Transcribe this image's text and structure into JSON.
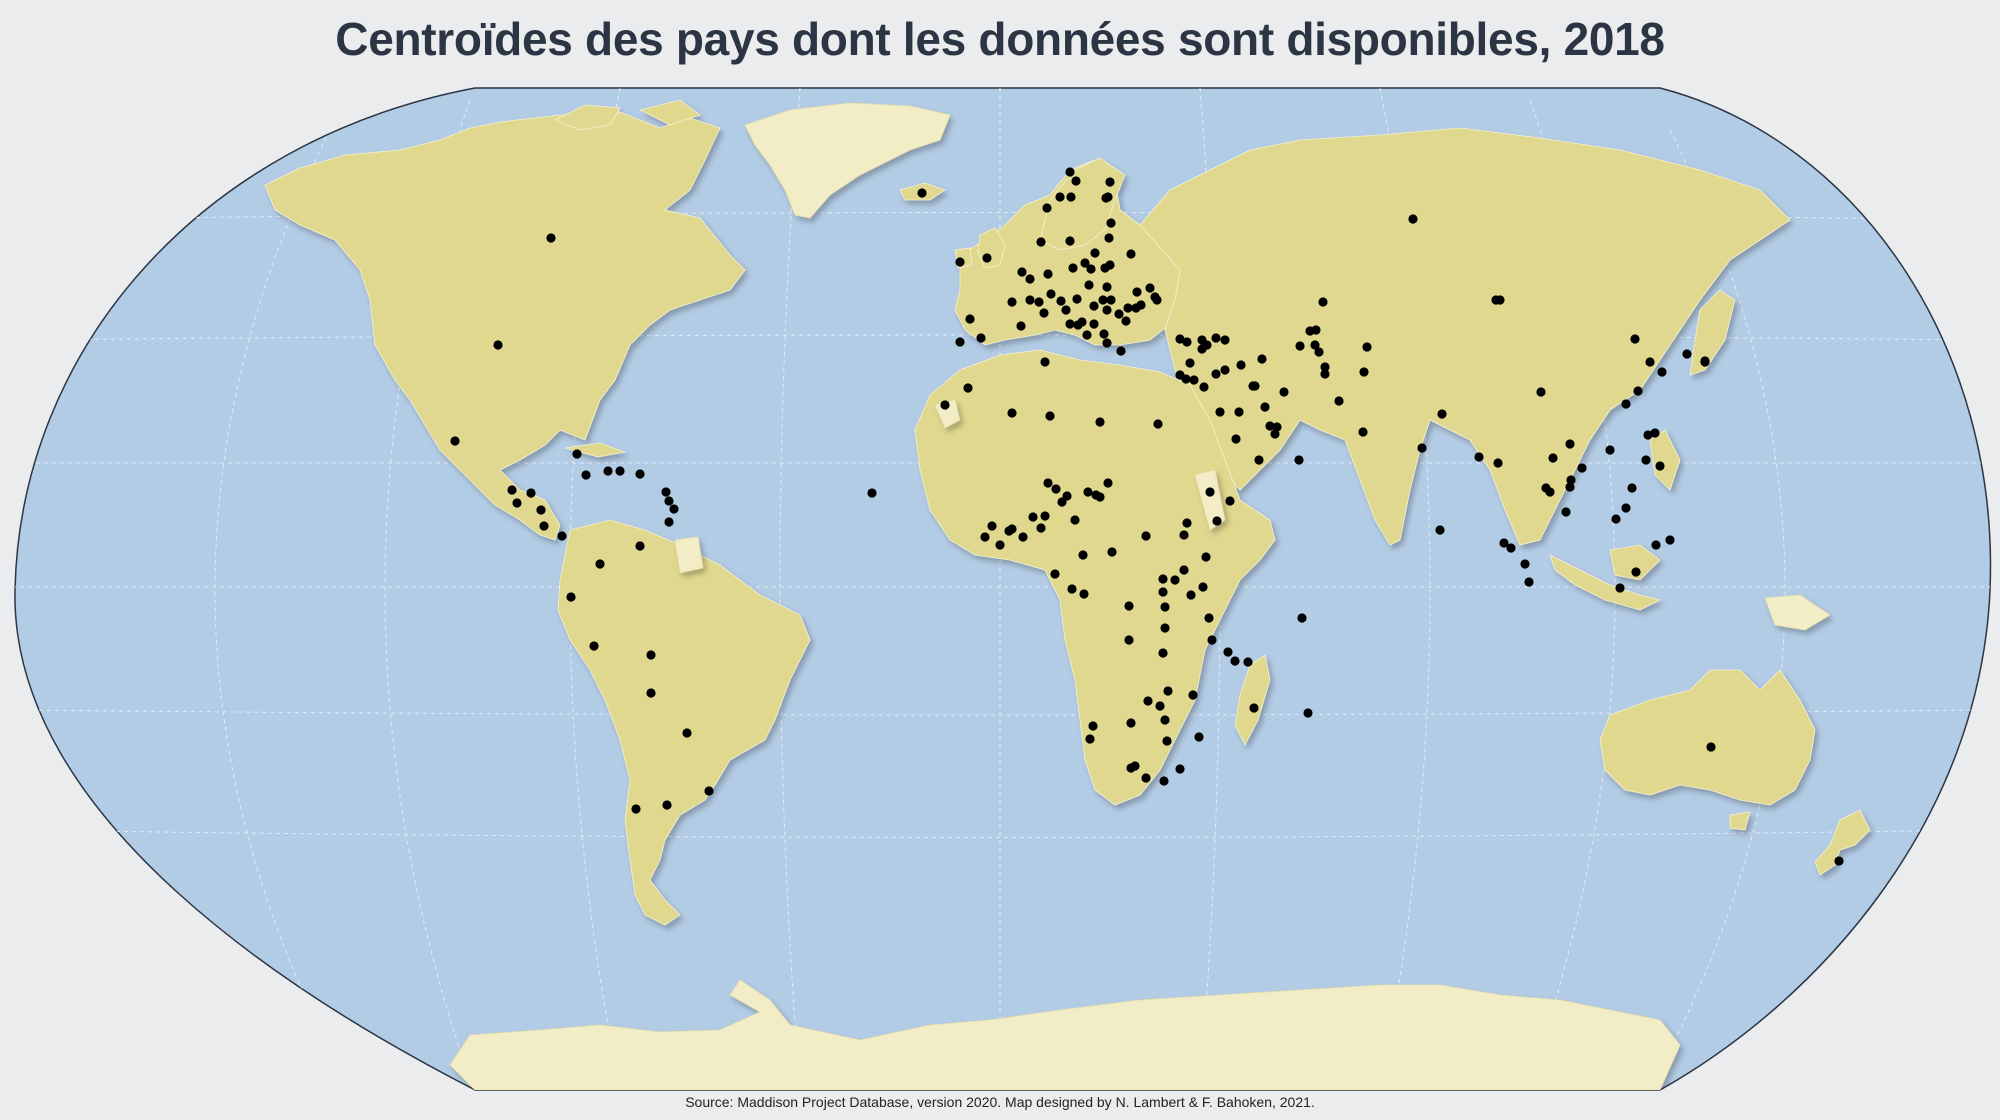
{
  "title": "Centroïdes des pays dont les données sont disponibles, 2018",
  "source": "Source: Maddison Project Database, version 2020. Map designed by N. Lambert & F. Bahoken, 2021.",
  "map": {
    "projection": "Winkel Tripel",
    "graticule": "dashed, every 20°",
    "colors": {
      "ocean": "#b3cce5",
      "land_with_data": "#e1d88f",
      "land_without_data": "#f2edc6",
      "centroid": "#000000",
      "outline": "#2b3544",
      "background": "#ebecee"
    },
    "layers": [
      "ocean",
      "graticule",
      "land-with-data",
      "land-without-data",
      "country-centroids"
    ]
  }
}
